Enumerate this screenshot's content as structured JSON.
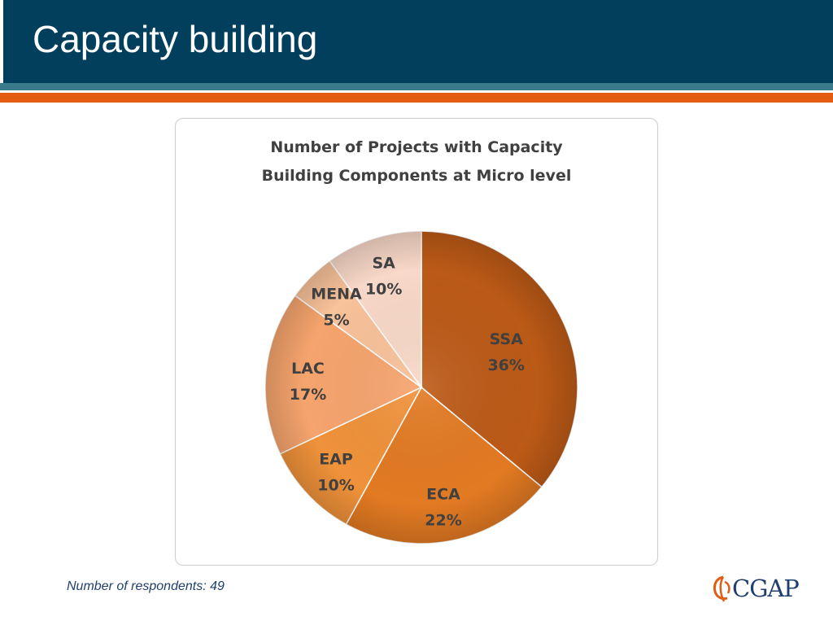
{
  "slide": {
    "title": "Capacity building",
    "footnote": "Number of respondents: 49",
    "logo_text": "CGAP"
  },
  "colors": {
    "header": "#023f5c",
    "stripe_teal": "#3b7a8c",
    "stripe_orange": "#e25d13"
  },
  "chart_data": {
    "type": "pie",
    "title_lines": [
      "Number of Projects with Capacity",
      "Building Components at Micro level"
    ],
    "start": "12 o'clock",
    "direction": "clockwise",
    "slices": [
      {
        "name": "SSA",
        "value": 36,
        "label": "36%",
        "color": "#bc5a17"
      },
      {
        "name": "ECA",
        "value": 22,
        "label": "22%",
        "color": "#e27a22"
      },
      {
        "name": "EAP",
        "value": 10,
        "label": "10%",
        "color": "#f0923a"
      },
      {
        "name": "LAC",
        "value": 17,
        "label": "17%",
        "color": "#f6a46d"
      },
      {
        "name": "MENA",
        "value": 5,
        "label": "5%",
        "color": "#f8c29a"
      },
      {
        "name": "SA",
        "value": 10,
        "label": "10%",
        "color": "#f8d8c8"
      }
    ]
  }
}
